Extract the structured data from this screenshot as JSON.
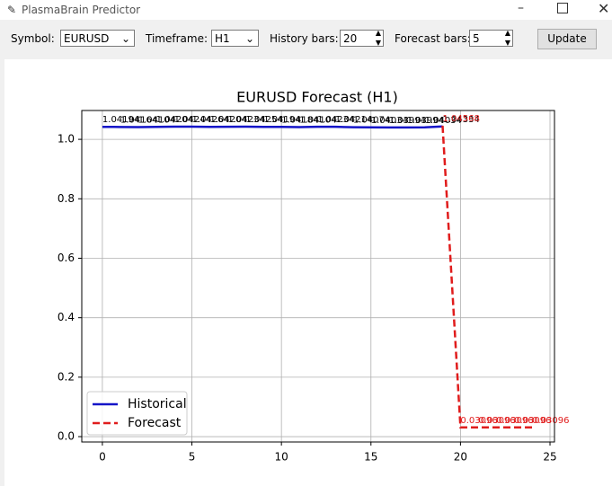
{
  "window": {
    "title": "PlasmaBrain Predictor"
  },
  "toolbar": {
    "symbol_label": "Symbol:",
    "symbol_value": "EURUSD",
    "timeframe_label": "Timeframe:",
    "timeframe_value": "H1",
    "history_label": "History bars:",
    "history_value": "20",
    "forecast_label": "Forecast bars:",
    "forecast_value": "5",
    "update_button": "Update"
  },
  "chart_data": {
    "type": "line",
    "title": "EURUSD Forecast (H1)",
    "series": [
      {
        "name": "Historical",
        "color": "#1414c8",
        "dash": false,
        "label_color": "#000000",
        "x": [
          0,
          1,
          2,
          3,
          4,
          5,
          6,
          7,
          8,
          9,
          10,
          11,
          12,
          13,
          14,
          15,
          16,
          17,
          18,
          19
        ],
        "values": [
          1.04194,
          1.04164,
          1.04104,
          1.04204,
          1.04244,
          1.04264,
          1.04204,
          1.04234,
          1.04254,
          1.04194,
          1.04184,
          1.04104,
          1.04234,
          1.04214,
          1.04074,
          1.04034,
          1.03994,
          1.03994,
          1.04034,
          1.04334
        ]
      },
      {
        "name": "Forecast",
        "color": "#e01c1c",
        "dash": true,
        "label_color": "#e01c1c",
        "x": [
          19,
          20,
          21,
          22,
          23,
          24
        ],
        "values": [
          1.04568,
          0.03096,
          0.03096,
          0.03096,
          0.03096,
          0.03096
        ]
      }
    ],
    "xlim": [
      -1.15,
      25.25
    ],
    "xticks": [
      0,
      5,
      10,
      15,
      20,
      25
    ],
    "ylim": [
      -0.018,
      1.097
    ],
    "yticks": [
      {
        "value": 0,
        "label": "0.0"
      },
      0.2,
      0.4,
      0.6,
      0.8,
      {
        "value": 1,
        "label": "1.0"
      }
    ],
    "grid": true,
    "legend": "lower left"
  }
}
